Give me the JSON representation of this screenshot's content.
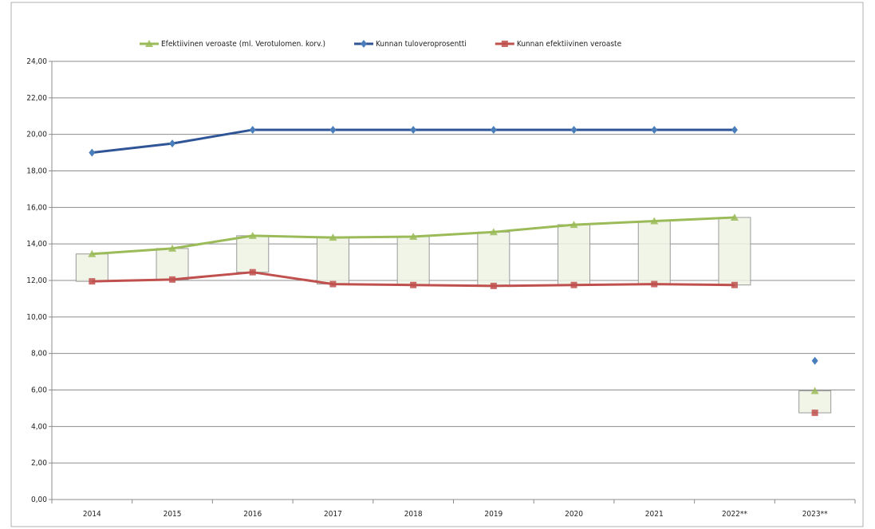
{
  "chart_data": {
    "type": "line",
    "categories": [
      "2014",
      "2015",
      "2016",
      "2017",
      "2018",
      "2019",
      "2020",
      "2021",
      "2022**",
      "2023**"
    ],
    "series": [
      {
        "name": "Efektiivinen veroaste (ml. Verotulomen. korv.)",
        "color": "#9bbb59",
        "marker": "triangle",
        "values": [
          13.45,
          13.75,
          14.45,
          14.35,
          14.4,
          14.65,
          15.05,
          15.25,
          15.45,
          5.95
        ]
      },
      {
        "name": "Kunnan tuloveroprosentti",
        "color": "#2f5597",
        "marker": "diamond",
        "values": [
          19.0,
          19.5,
          20.25,
          20.25,
          20.25,
          20.25,
          20.25,
          20.25,
          20.25,
          7.6
        ]
      },
      {
        "name": "Kunnan efektiivinen veroaste",
        "color": "#c0504d",
        "marker": "square",
        "values": [
          11.95,
          12.05,
          12.45,
          11.8,
          11.75,
          11.7,
          11.75,
          11.8,
          11.75,
          4.75
        ]
      }
    ],
    "up_down_bars": true,
    "last_point_unconnected": true,
    "ylim": [
      0,
      24
    ],
    "yticks": [
      {
        "value": 0,
        "label": "0,00"
      },
      {
        "value": 2,
        "label": "2,00"
      },
      {
        "value": 4,
        "label": "4,00"
      },
      {
        "value": 6,
        "label": "6,00"
      },
      {
        "value": 8,
        "label": "8,00"
      },
      {
        "value": 10,
        "label": "10,00"
      },
      {
        "value": 12,
        "label": "12,00"
      },
      {
        "value": 14,
        "label": "14,00"
      },
      {
        "value": 16,
        "label": "16,00"
      },
      {
        "value": 18,
        "label": "18,00"
      },
      {
        "value": 20,
        "label": "20,00"
      },
      {
        "value": 22,
        "label": "22,00"
      },
      {
        "value": 24,
        "label": "24,00"
      }
    ],
    "grid": true
  }
}
